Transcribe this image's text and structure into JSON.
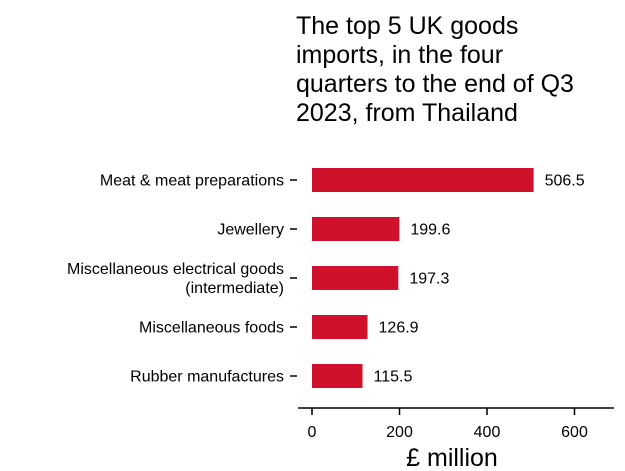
{
  "chart_data": {
    "type": "bar",
    "orientation": "horizontal",
    "title_lines": [
      "The top 5 UK goods",
      "imports, in the four",
      "quarters to the end of Q3",
      "2023, from Thailand"
    ],
    "categories": [
      [
        "Meat & meat preparations"
      ],
      [
        "Jewellery"
      ],
      [
        "Miscellaneous electrical goods",
        "(intermediate)"
      ],
      [
        "Miscellaneous foods"
      ],
      [
        "Rubber manufactures"
      ]
    ],
    "values": [
      506.5,
      199.6,
      197.3,
      126.9,
      115.5
    ],
    "value_labels": [
      "506.5",
      "199.6",
      "197.3",
      "126.9",
      "115.5"
    ],
    "xlabel": "£ million",
    "ylabel": "",
    "xlim": [
      0,
      700
    ],
    "xticks": [
      0,
      200,
      400,
      600
    ],
    "grid": false,
    "bar_color": "#d0112b"
  }
}
